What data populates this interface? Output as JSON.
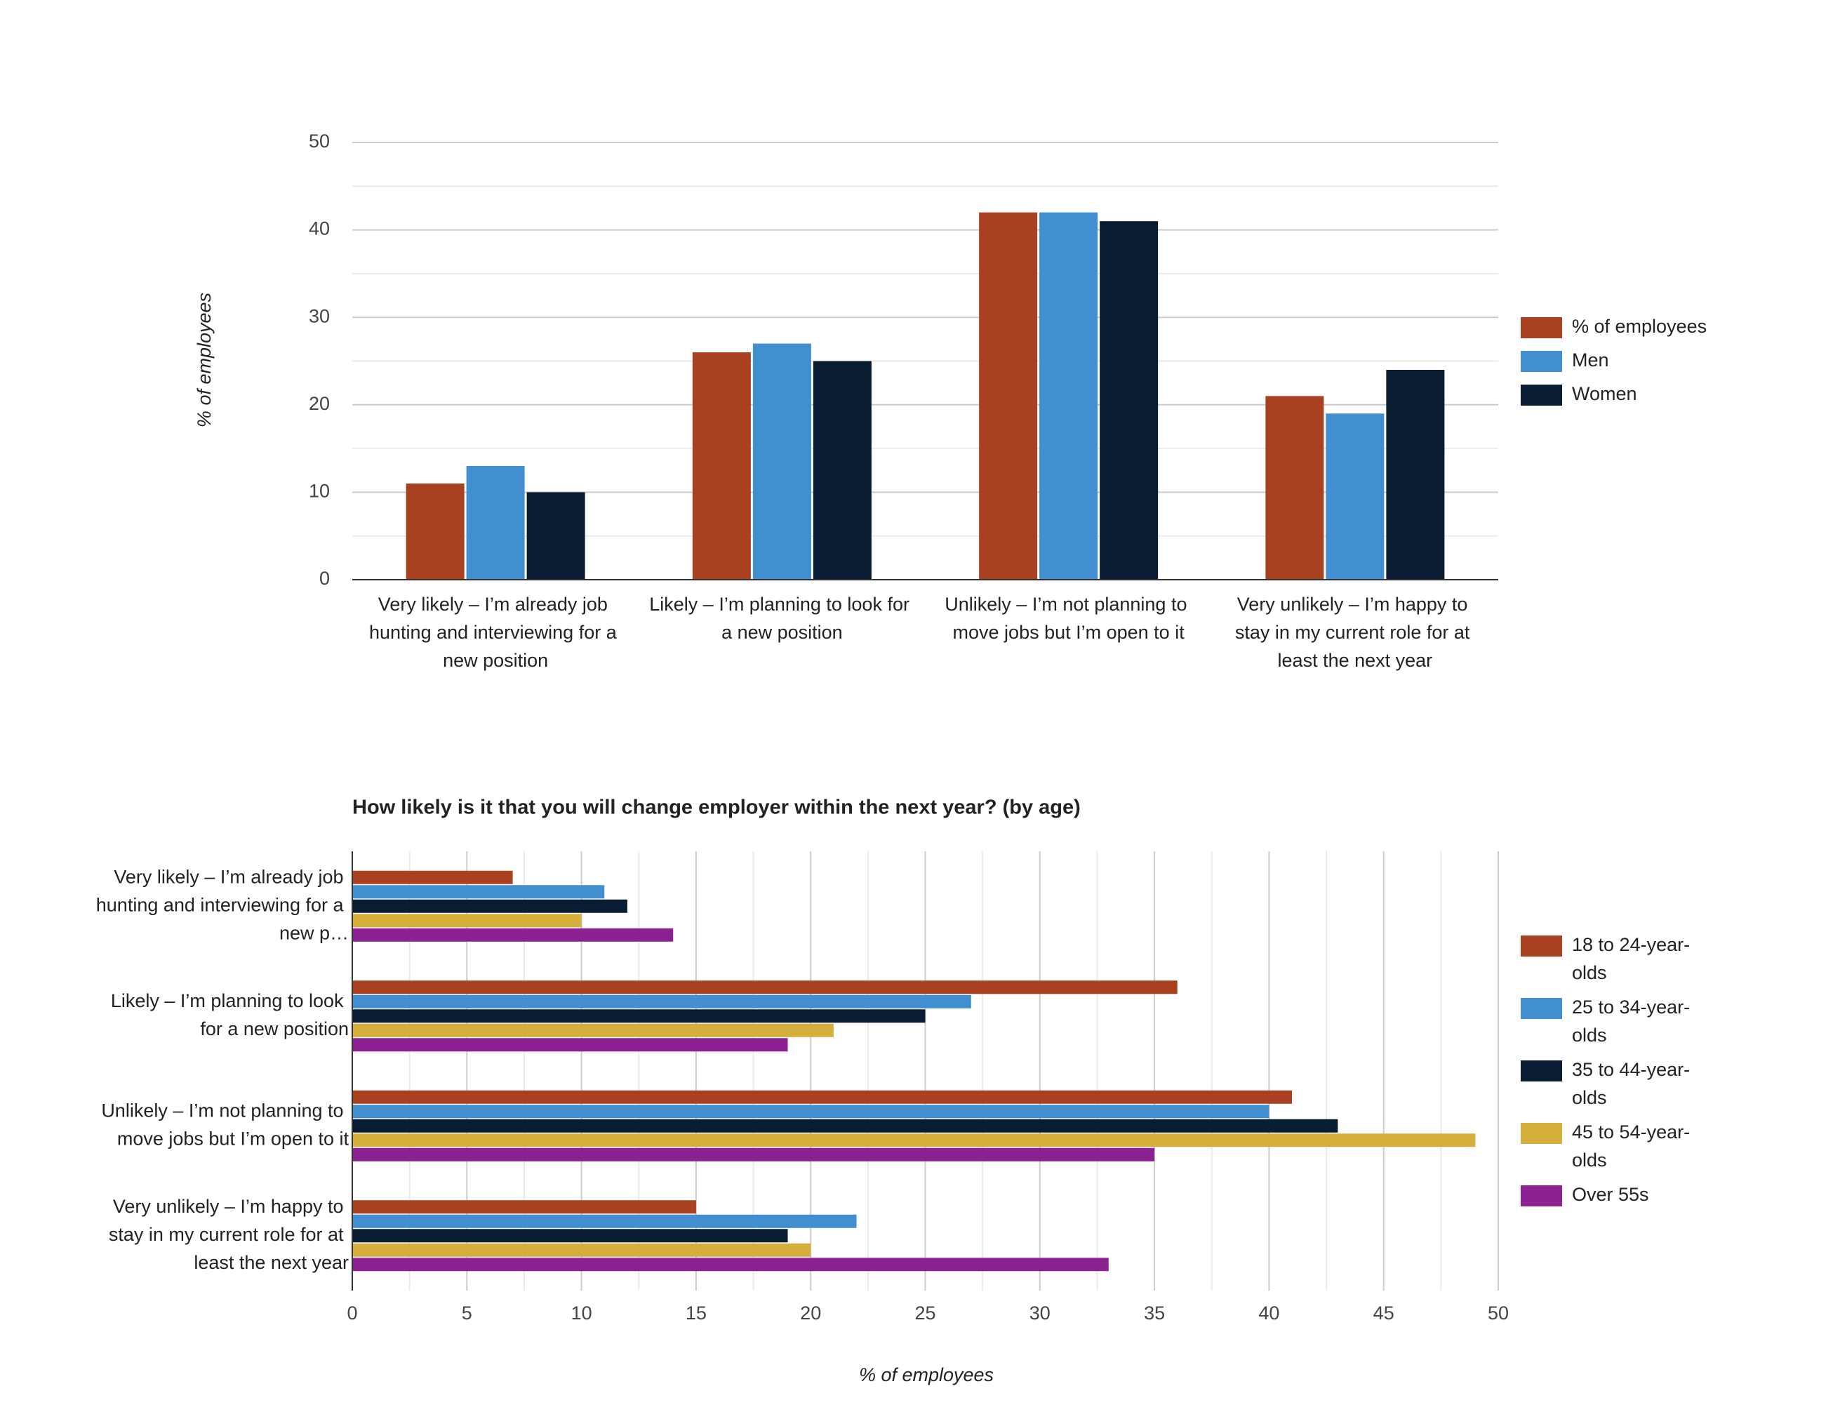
{
  "chart_data": [
    {
      "type": "bar",
      "categories": [
        "Very likely – I’m already job hunting and interviewing for a new position",
        "Likely – I’m planning to look for a new position",
        "Unlikely – I’m not planning to move jobs but I’m open to it",
        "Very unlikely – I’m happy to stay in my current role for at least the next year"
      ],
      "series": [
        {
          "name": "% of employees",
          "color": "#a94120",
          "values": [
            11,
            26,
            42,
            21
          ]
        },
        {
          "name": "Men",
          "color": "#418fd1",
          "values": [
            13,
            27,
            42,
            19
          ]
        },
        {
          "name": "Women",
          "color": "#0a1c31",
          "values": [
            10,
            25,
            41,
            24
          ]
        }
      ],
      "y_label": "% of employees",
      "ylim": [
        0,
        50
      ],
      "yticks": [
        0,
        10,
        20,
        30,
        40,
        50
      ],
      "grid": true,
      "legend": "right"
    },
    {
      "type": "barh",
      "title": "How likely is it that you will change employer within the next year? (by age)",
      "categories": [
        "Very likely – I’m already job hunting and interviewing for a new p…",
        "Likely – I’m planning to look for a new position",
        "Unlikely – I’m not planning to move jobs but I’m open to it",
        "Very unlikely – I’m happy to stay in my current role for at least the next year"
      ],
      "series": [
        {
          "name": "18 to 24-year-olds",
          "color": "#a94120",
          "values": [
            7,
            36,
            41,
            15
          ]
        },
        {
          "name": "25 to 34-year-olds",
          "color": "#418fd1",
          "values": [
            11,
            27,
            40,
            22
          ]
        },
        {
          "name": "35 to 44-year-olds",
          "color": "#0a1c31",
          "values": [
            12,
            25,
            43,
            19
          ]
        },
        {
          "name": "45 to 54-year-olds",
          "color": "#d5ae3b",
          "values": [
            10,
            21,
            49,
            20
          ]
        },
        {
          "name": "Over 55s",
          "color": "#8c2191",
          "values": [
            14,
            19,
            35,
            33
          ]
        }
      ],
      "x_label": "% of employees",
      "xlim": [
        0,
        50
      ],
      "xticks": [
        0,
        5,
        10,
        15,
        20,
        25,
        30,
        35,
        40,
        45,
        50
      ],
      "grid": true,
      "legend": "right"
    }
  ]
}
